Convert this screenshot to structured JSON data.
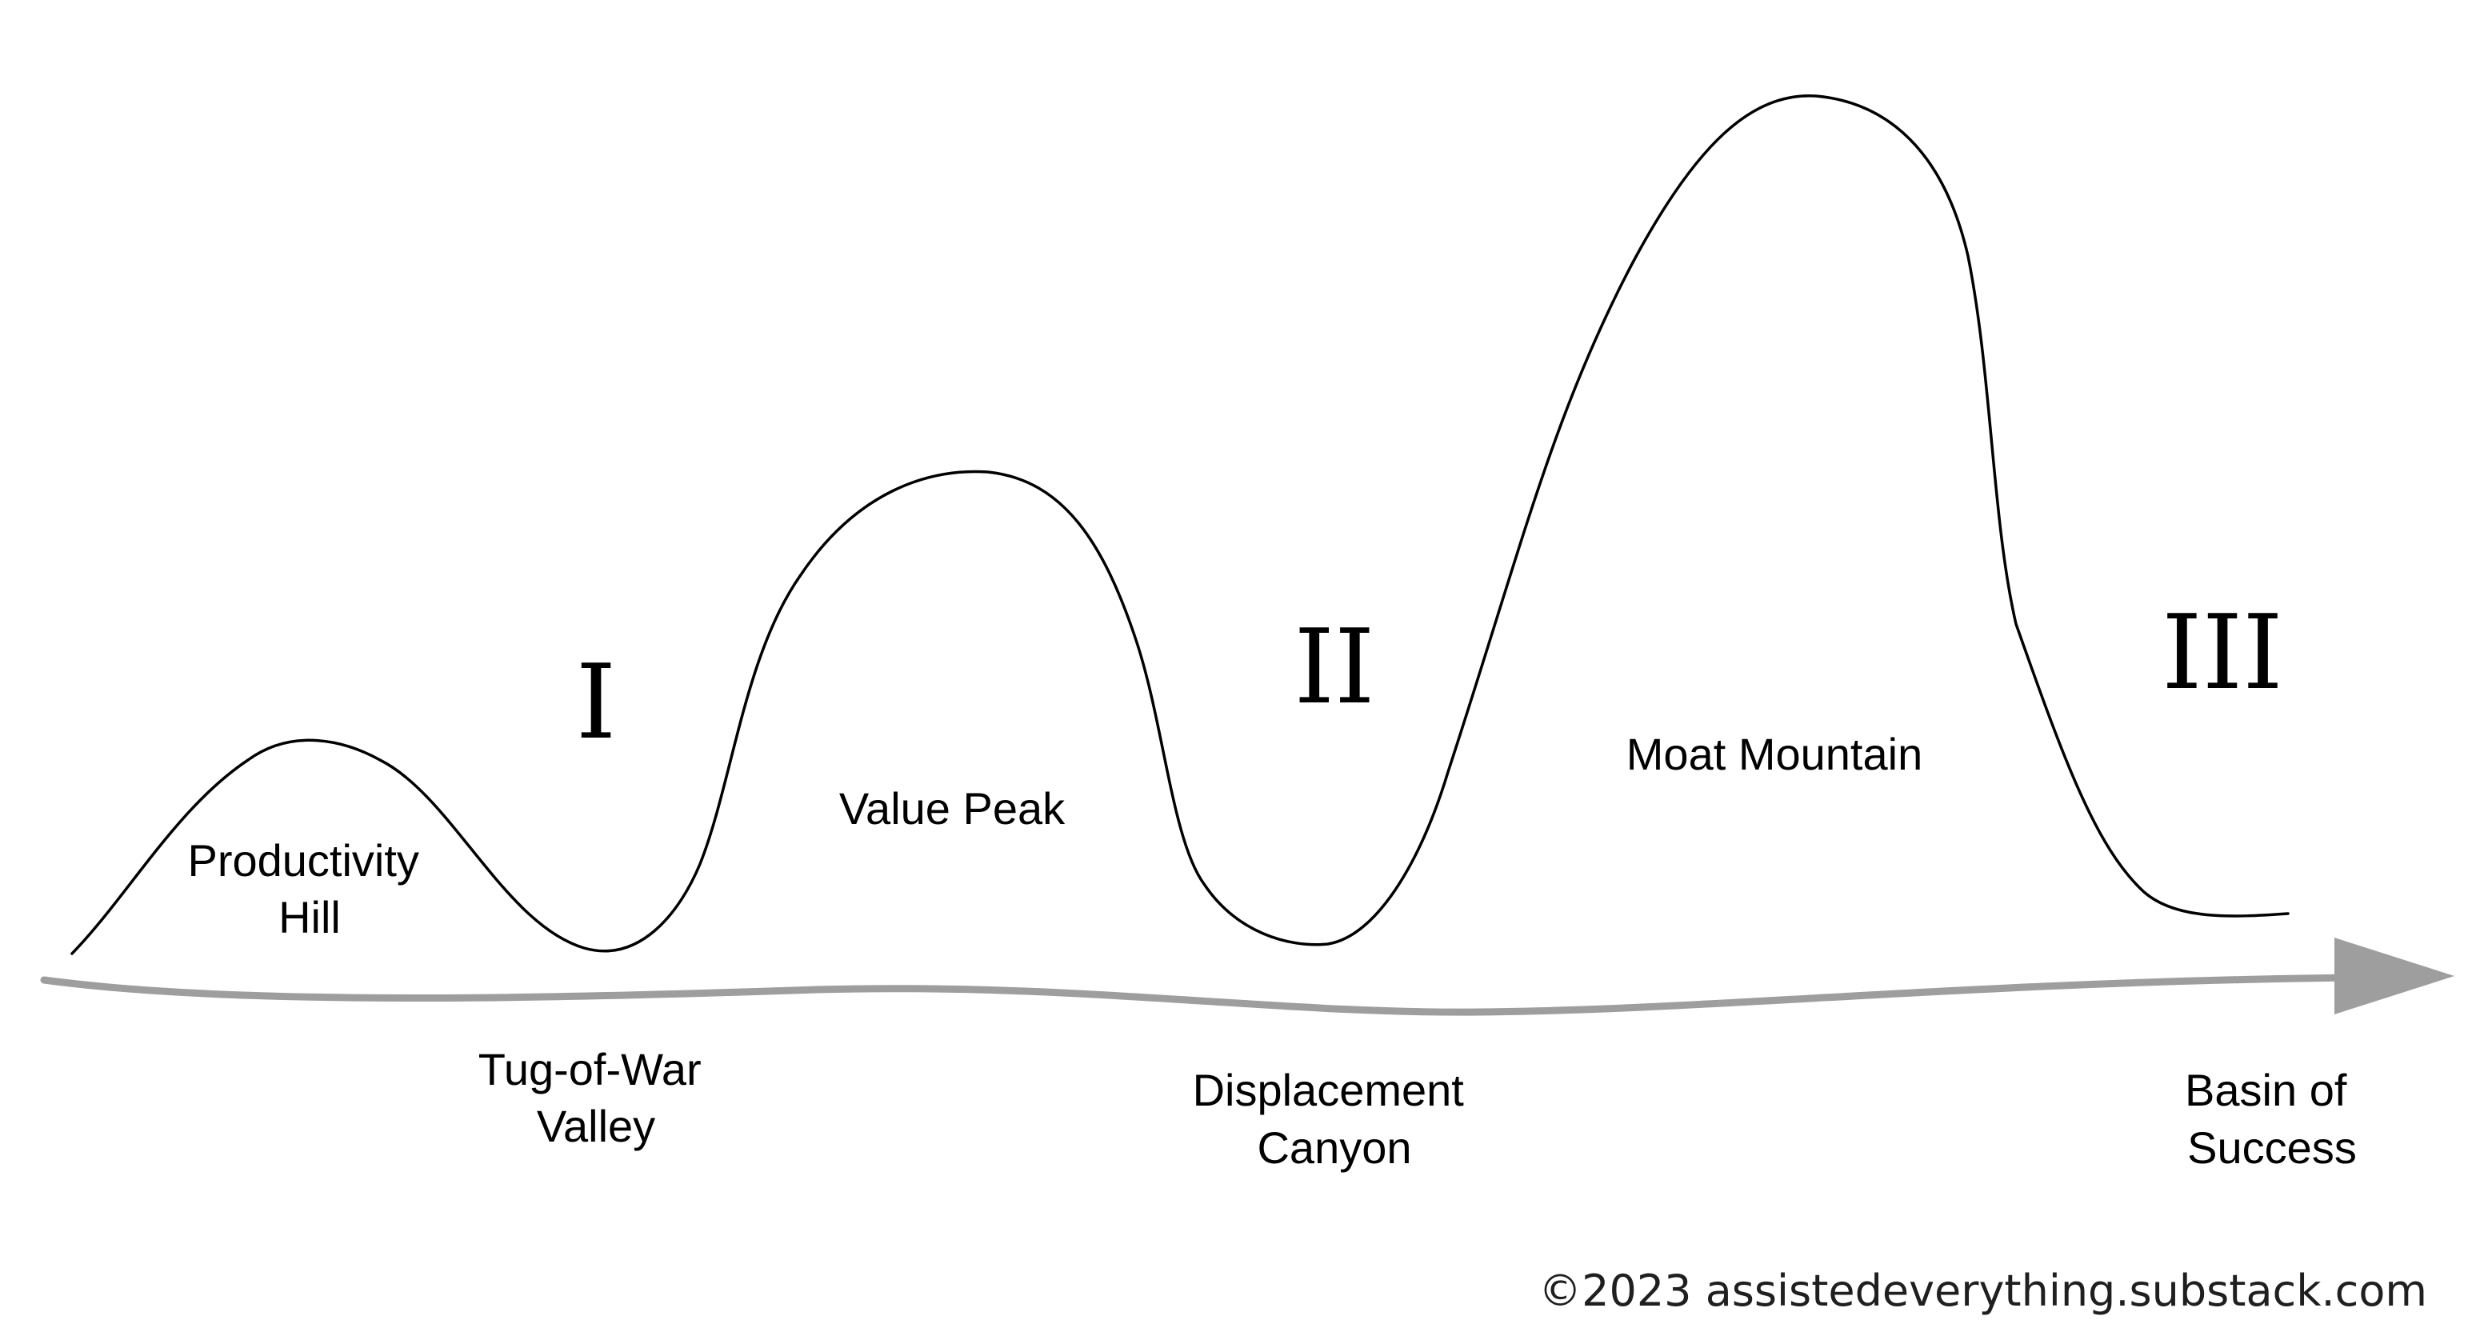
{
  "numerals": {
    "one": "I",
    "two": "II",
    "three": "III"
  },
  "peaks": {
    "productivity_hill": [
      "Productivity",
      "Hill"
    ],
    "value_peak": [
      "Value Peak"
    ],
    "moat_mountain": [
      "Moat Mountain"
    ]
  },
  "valleys": {
    "tug_of_war_valley": [
      "Tug-of-War",
      "Valley"
    ],
    "displacement_canyon": [
      "Displacement",
      "Canyon"
    ],
    "basin_of_success": [
      "Basin of",
      "Success"
    ]
  },
  "footer": {
    "copyright": "©2023 assistedeverything.substack.com"
  },
  "colors": {
    "terrain_line": "#000000",
    "axis_arrow": "#9e9e9e",
    "text": "#000000"
  }
}
